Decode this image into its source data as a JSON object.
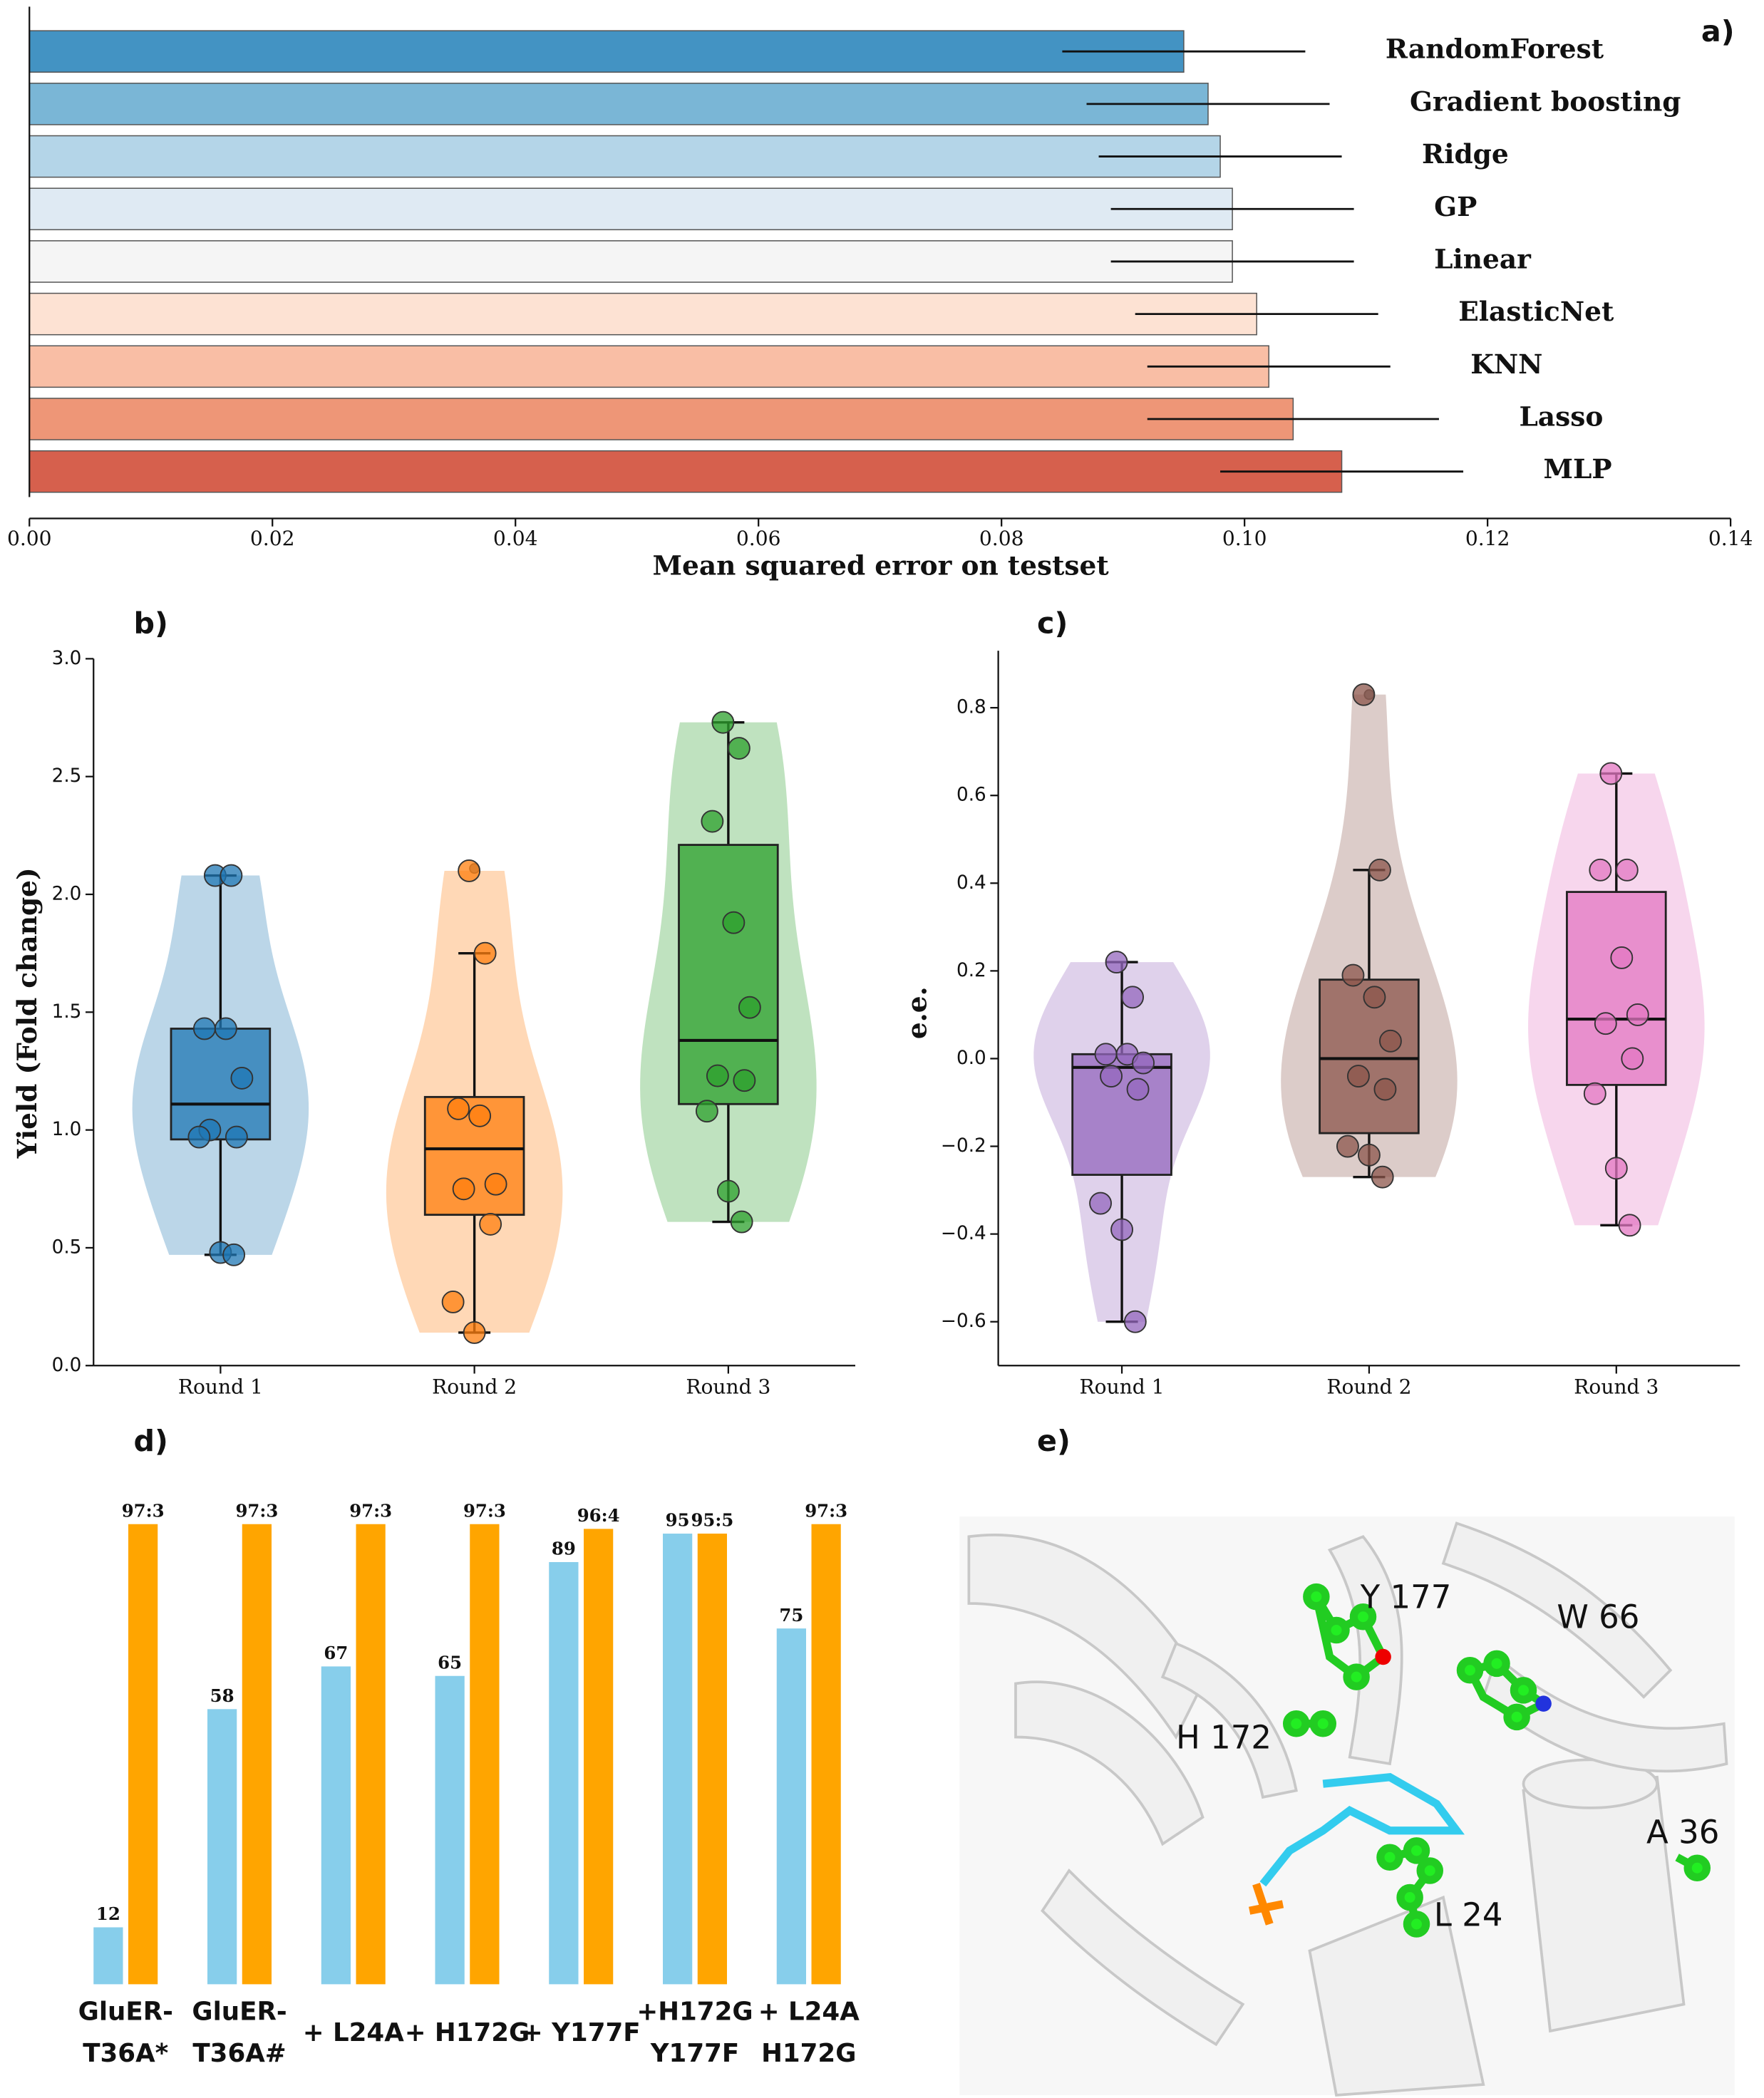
{
  "chart_data": [
    {
      "type": "hbar",
      "label": "a)",
      "categories": [
        "RandomForest",
        "Gradient boosting",
        "Ridge",
        "GP",
        "Linear",
        "ElasticNet",
        "KNN",
        "Lasso",
        "MLP"
      ],
      "values": [
        0.095,
        0.097,
        0.098,
        0.099,
        0.099,
        0.101,
        0.102,
        0.104,
        0.108
      ],
      "errors": [
        0.01,
        0.01,
        0.01,
        0.01,
        0.01,
        0.01,
        0.01,
        0.012,
        0.01
      ],
      "colors": [
        "#4393c3",
        "#7ab6d6",
        "#b4d5e8",
        "#dfeaf3",
        "#f5f5f5",
        "#fde2d3",
        "#f9bea5",
        "#ee9677",
        "#d6604d"
      ],
      "xlim": [
        0,
        0.14
      ],
      "xticks": [
        {
          "value": 0,
          "label": "0.00"
        },
        {
          "value": 0.02,
          "label": "0.02"
        },
        {
          "value": 0.04,
          "label": "0.04"
        },
        {
          "value": 0.06,
          "label": "0.06"
        },
        {
          "value": 0.08,
          "label": "0.08"
        },
        {
          "value": 0.1,
          "label": "0.10"
        },
        {
          "value": 0.12,
          "label": "0.12"
        },
        {
          "value": 0.14,
          "label": "0.14"
        }
      ],
      "xlabel": "Mean squared error on testset"
    },
    {
      "type": "violin_box",
      "label": "b)",
      "ylabel": "Yield (Fold change)",
      "categories": [
        "Round 1",
        "Round 2",
        "Round 3"
      ],
      "colors": [
        "#1f77b4",
        "#ff7f0e",
        "#2ca02c"
      ],
      "points": [
        [
          2.08,
          2.08,
          1.43,
          1.43,
          1.22,
          1.0,
          0.97,
          0.97,
          0.48,
          0.47
        ],
        [
          2.1,
          1.75,
          1.09,
          1.06,
          0.77,
          0.75,
          0.6,
          0.27,
          0.14
        ],
        [
          2.73,
          2.62,
          2.31,
          1.88,
          1.52,
          1.23,
          1.21,
          1.08,
          0.74,
          0.61
        ]
      ],
      "boxes": [
        {
          "q1": 0.96,
          "median": 1.11,
          "q3": 1.43,
          "whislo": 0.47,
          "whishi": 2.08,
          "fliers": []
        },
        {
          "q1": 0.64,
          "median": 0.92,
          "q3": 1.14,
          "whislo": 0.14,
          "whishi": 1.75,
          "fliers": [
            2.11
          ]
        },
        {
          "q1": 1.11,
          "median": 1.38,
          "q3": 2.21,
          "whislo": 0.61,
          "whishi": 2.73,
          "fliers": []
        }
      ],
      "ylim": [
        0,
        3.0
      ],
      "yticks": [
        {
          "value": 0,
          "label": "0.0"
        },
        0.5,
        {
          "value": 1,
          "label": "1.0"
        },
        1.5,
        {
          "value": 2,
          "label": "2.0"
        },
        2.5,
        {
          "value": 3,
          "label": "3.0"
        }
      ]
    },
    {
      "type": "violin_box",
      "label": "c)",
      "ylabel": "e.e.",
      "categories": [
        "Round 1",
        "Round 2",
        "Round 3"
      ],
      "colors": [
        "#9467bd",
        "#8c564b",
        "#e377c2"
      ],
      "points": [
        [
          0.22,
          0.14,
          0.01,
          0.01,
          -0.01,
          -0.04,
          -0.07,
          -0.33,
          -0.39,
          -0.6
        ],
        [
          0.83,
          0.43,
          0.19,
          0.14,
          0.04,
          -0.04,
          -0.07,
          -0.2,
          -0.22,
          -0.27
        ],
        [
          0.65,
          0.43,
          0.43,
          0.23,
          0.1,
          0.08,
          0.0,
          -0.08,
          -0.25,
          -0.38
        ]
      ],
      "boxes": [
        {
          "q1": -0.265,
          "median": -0.02,
          "q3": 0.01,
          "whislo": -0.6,
          "whishi": 0.22,
          "fliers": []
        },
        {
          "q1": -0.17,
          "median": 0.0,
          "q3": 0.18,
          "whislo": -0.27,
          "whishi": 0.43,
          "fliers": [
            0.83
          ]
        },
        {
          "q1": -0.06,
          "median": 0.09,
          "q3": 0.38,
          "whislo": -0.38,
          "whishi": 0.65,
          "fliers": []
        }
      ],
      "ylim": [
        -0.7,
        0.93
      ],
      "yticks": [
        {
          "value": -0.6,
          "label": "−0.6"
        },
        {
          "value": -0.4,
          "label": "−0.4"
        },
        {
          "value": -0.2,
          "label": "−0.2"
        },
        {
          "value": 0,
          "label": "0.0"
        },
        0.2,
        0.4,
        0.6,
        0.8
      ]
    },
    {
      "type": "grouped_bar",
      "label": "d)",
      "categories": [
        [
          "GluER-",
          "T36A*"
        ],
        [
          "GluER-",
          "T36A#"
        ],
        [
          "+ L24A"
        ],
        [
          "+ H172G"
        ],
        [
          "+ Y177F"
        ],
        [
          "+H172G",
          "Y177F"
        ],
        [
          "+ L24A",
          "H172G"
        ]
      ],
      "series": [
        {
          "color": "#87ceeb",
          "values": [
            12,
            58,
            67,
            65,
            89,
            95,
            75
          ]
        },
        {
          "color": "#ffa500",
          "values": [
            97,
            97,
            97,
            97,
            96,
            95,
            97
          ],
          "value_labels": [
            "97:3",
            "97:3",
            "97:3",
            "97:3",
            "96:4",
            "95:5",
            "97:3"
          ]
        }
      ]
    }
  ],
  "structure_panel": {
    "label": "e)",
    "residues": [
      "Y 177",
      "W 66",
      "H 172",
      "A 36",
      "L 24"
    ]
  }
}
